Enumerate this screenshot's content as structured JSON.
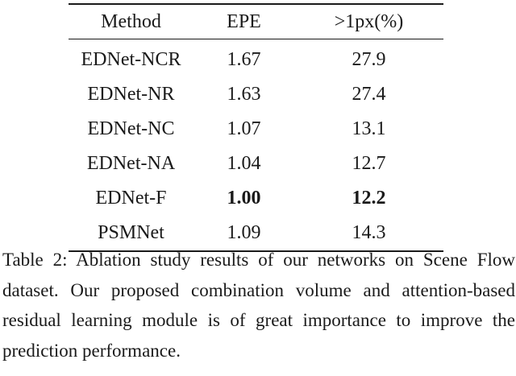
{
  "table": {
    "headers": [
      "Method",
      "EPE",
      ">1px(%)"
    ],
    "rows": [
      {
        "method": "EDNet-NCR",
        "epe": "1.67",
        "px1": "27.9",
        "bold": false
      },
      {
        "method": "EDNet-NR",
        "epe": "1.63",
        "px1": "27.4",
        "bold": false
      },
      {
        "method": "EDNet-NC",
        "epe": "1.07",
        "px1": "13.1",
        "bold": false
      },
      {
        "method": "EDNet-NA",
        "epe": "1.04",
        "px1": "12.7",
        "bold": false
      },
      {
        "method": "EDNet-F",
        "epe": "1.00",
        "px1": "12.2",
        "bold": true
      },
      {
        "method": "PSMNet",
        "epe": "1.09",
        "px1": "14.3",
        "bold": false
      }
    ]
  },
  "caption": {
    "text": "Table 2: Ablation study results of our networks on Scene Flow dataset. Our proposed combination volume and attention-based residual learning module is of great importance to improve the prediction performance."
  }
}
